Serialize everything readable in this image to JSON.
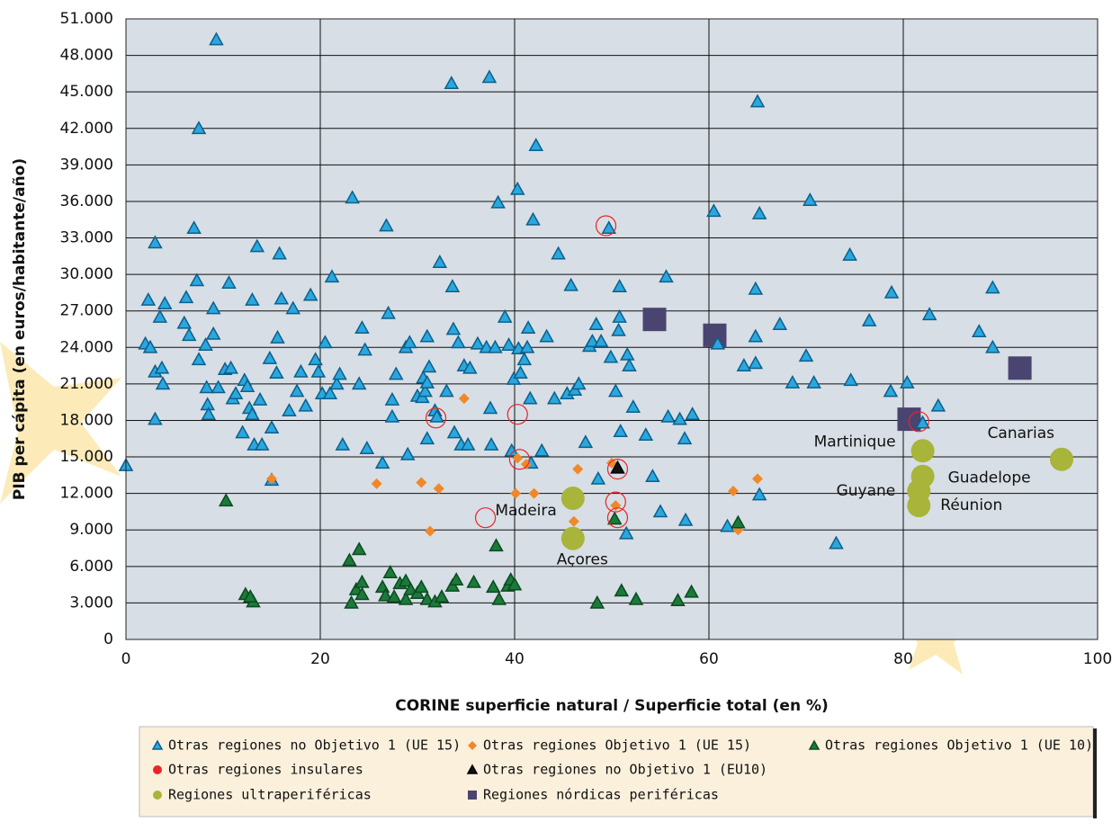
{
  "chart_data": {
    "type": "scatter",
    "xlabel": "CORINE superficie natural / Superficie total (en %)",
    "ylabel": "PIB per cápita (en euros/habitante/año)",
    "xlim": [
      0,
      100
    ],
    "xticks": [
      0,
      20,
      40,
      60,
      80,
      100
    ],
    "ylim": [
      0,
      51000
    ],
    "yticks": [
      0,
      {
        "value": 3000,
        "label": "3.000"
      },
      {
        "value": 6000,
        "label": "6.000"
      },
      {
        "value": 9000,
        "label": "9.000"
      },
      {
        "value": 12000,
        "label": "12.000"
      },
      {
        "value": 15000,
        "label": "15.000"
      },
      {
        "value": 18000,
        "label": "18.000"
      },
      {
        "value": 21000,
        "label": "21.000"
      },
      {
        "value": 24000,
        "label": "24.000"
      },
      {
        "value": 27000,
        "label": "27.000"
      },
      {
        "value": 30000,
        "label": "30.000"
      },
      {
        "value": 33000,
        "label": "33.000"
      },
      {
        "value": 36000,
        "label": "36.000"
      },
      {
        "value": 39000,
        "label": "39.000"
      },
      {
        "value": 42000,
        "label": "42.000"
      },
      {
        "value": 45000,
        "label": "45.000"
      },
      {
        "value": 48000,
        "label": "48.000"
      },
      {
        "value": 51000,
        "label": "51.000"
      }
    ],
    "grid": true,
    "series": [
      {
        "name": "Otras regiones no Objetivo 1 (UE 15)",
        "color": "#2aa7df",
        "marker": "triangle",
        "x": [
          0,
          2,
          2.3,
          2.5,
          3,
          3,
          3,
          3.5,
          3.7,
          3.8,
          4,
          6,
          6.2,
          6.5,
          7,
          7.3,
          7.5,
          7.5,
          8.2,
          8.3,
          8.4,
          8.5,
          9,
          9,
          9.3,
          9.5,
          10.2,
          10.6,
          10.8,
          11,
          11.3,
          12,
          12.2,
          12.5,
          12.7,
          13,
          13,
          13.2,
          13.5,
          13.8,
          14,
          14.8,
          15,
          15,
          15.5,
          15.6,
          15.8,
          16,
          16.8,
          17.2,
          17.6,
          18,
          18.5,
          19,
          19.5,
          19.8,
          20.2,
          20.5,
          21,
          21.2,
          21.7,
          22,
          22.3,
          23.3,
          24,
          24.3,
          24.8,
          24.6,
          26.4,
          26.8,
          27,
          27.4,
          27.4,
          27.8,
          28.8,
          29,
          29.2,
          30,
          30.5,
          30.6,
          30.8,
          31,
          31,
          31,
          31.2,
          31.8,
          32,
          32.3,
          33,
          33.5,
          33.6,
          33.7,
          33.8,
          34.2,
          34.5,
          34.8,
          35.4,
          35.2,
          36.2,
          37.1,
          37.4,
          37.5,
          37.6,
          38,
          38.3,
          39,
          39.4,
          39.7,
          39.9,
          40.3,
          40.4,
          40.6,
          41,
          41.3,
          41.4,
          41.6,
          41.7,
          41.9,
          42.2,
          42.8,
          43.3,
          44.1,
          44.5,
          45.4,
          45.8,
          46.2,
          46.6,
          47.3,
          47.7,
          48,
          48.4,
          48.6,
          48.9,
          49.7,
          49.9,
          50.4,
          50.7,
          50.8,
          50.8,
          50.9,
          51.6,
          51.8,
          51.5,
          52.2,
          53.5,
          54.2,
          55,
          55.6,
          55.8,
          57,
          57.5,
          57.6,
          58.3,
          60.5,
          60.9,
          61.9,
          63.6,
          64.8,
          64.8,
          64.8,
          65,
          65.2,
          65.2,
          67.3,
          68.6,
          70,
          70.4,
          70.8,
          73.1,
          74.5,
          74.6,
          76.5,
          78.8,
          78.7,
          80.4,
          82,
          82.7,
          83.6,
          87.8,
          89.2,
          89.2
        ],
        "values": [
          14300,
          24300,
          27900,
          24000,
          32600,
          22000,
          18100,
          26500,
          22300,
          21000,
          27600,
          26000,
          28100,
          25000,
          33800,
          29500,
          42000,
          23000,
          24200,
          20700,
          19300,
          18500,
          27200,
          25100,
          49300,
          20700,
          22200,
          29300,
          22300,
          19800,
          20200,
          17000,
          21300,
          20800,
          19000,
          18500,
          27900,
          16000,
          32300,
          19700,
          16000,
          23100,
          17400,
          13100,
          21900,
          24800,
          31700,
          28000,
          18800,
          27200,
          20400,
          22000,
          19200,
          28300,
          23000,
          22000,
          20200,
          24400,
          20200,
          29800,
          21000,
          21800,
          16000,
          36300,
          21000,
          25600,
          15700,
          23800,
          14500,
          34000,
          26800,
          19700,
          18300,
          21800,
          24000,
          15200,
          24400,
          20000,
          19900,
          21500,
          20400,
          16500,
          24900,
          21100,
          22400,
          18800,
          18300,
          31000,
          20400,
          45700,
          29000,
          25500,
          17000,
          24400,
          16000,
          22500,
          22300,
          16000,
          24300,
          24000,
          46200,
          19000,
          16000,
          24000,
          35900,
          26500,
          24200,
          15500,
          21400,
          37000,
          23900,
          21900,
          23000,
          24000,
          25600,
          19800,
          14500,
          34500,
          40600,
          15500,
          24900,
          19800,
          31700,
          20200,
          29100,
          20500,
          21000,
          16200,
          24100,
          24500,
          25900,
          13200,
          24500,
          33800,
          23200,
          20400,
          25400,
          26500,
          29000,
          17100,
          23400,
          22500,
          8700,
          19100,
          16800,
          13400,
          10500,
          29800,
          18300,
          18100,
          16500,
          9800,
          18500,
          35200,
          24300,
          9300,
          22500,
          22700,
          24900,
          28800,
          44200,
          35000,
          11900,
          25900,
          21100,
          23300,
          36100,
          21100,
          7900,
          31600,
          21300,
          26200,
          28500,
          20400,
          21100,
          17800,
          26700,
          19200,
          25300,
          24000,
          28900
        ]
      },
      {
        "name": "Otras regiones Objetivo 1 (UE 15)",
        "color": "#f0882a",
        "marker": "diamond",
        "x": [
          15,
          25.8,
          30.4,
          31.3,
          32.2,
          34.8,
          40.1,
          40.3,
          41.2,
          42,
          46.1,
          46.5,
          50,
          50.4,
          62.5,
          63,
          65
        ],
        "values": [
          13200,
          12800,
          12900,
          8900,
          12400,
          19800,
          12000,
          14900,
          14400,
          12000,
          9700,
          14000,
          14500,
          11000,
          12200,
          9000,
          13200
        ]
      },
      {
        "name": "Otras regiones Objetivo 1 (UE 10)",
        "color": "#1a7a3a",
        "marker": "triangle",
        "x": [
          10.3,
          12.3,
          13.1,
          12.8,
          23,
          23.2,
          23.7,
          24,
          24.3,
          24.3,
          26.4,
          26.7,
          27.2,
          27.6,
          28.2,
          28.8,
          28.8,
          29.3,
          30,
          30.4,
          31,
          31.8,
          32.5,
          33.6,
          34,
          35.8,
          37.8,
          38.1,
          38.4,
          39.3,
          39.6,
          40,
          48.5,
          50.3,
          51,
          52.5,
          56.8,
          58.2,
          63
        ],
        "values": [
          11400,
          3700,
          3100,
          3500,
          6500,
          3000,
          4100,
          7400,
          4700,
          3700,
          4300,
          3600,
          5500,
          3500,
          4600,
          4800,
          3300,
          4100,
          3800,
          4300,
          3300,
          3100,
          3500,
          4400,
          4900,
          4700,
          4300,
          7700,
          3300,
          4400,
          4900,
          4500,
          3000,
          9900,
          4000,
          3300,
          3200,
          3900,
          9600
        ]
      },
      {
        "name": "Otras regiones insulares",
        "color": "#e8262a",
        "marker": "circle-open",
        "x": [
          31.9,
          40.3,
          37,
          49.4,
          50.6,
          40.5,
          50.4,
          50.6,
          81.6
        ],
        "values": [
          18200,
          18500,
          10000,
          34000,
          14000,
          14800,
          11300,
          10000,
          17900
        ]
      },
      {
        "name": "Otras regiones no Objetivo 1 (EU10)",
        "color": "#111111",
        "marker": "triangle",
        "x": [
          50.6
        ],
        "values": [
          14100
        ]
      },
      {
        "name": "Regiones ultraperiféricas",
        "color": "#a8b43a",
        "marker": "circle",
        "x": [
          82,
          96.3,
          82,
          81.6,
          81.6,
          46,
          46
        ],
        "values": [
          15500,
          14800,
          13400,
          12200,
          11000,
          11600,
          8300
        ],
        "labels": [
          "Martinique",
          "Canarias",
          "Guadelope",
          "Guyane",
          "Réunion",
          "Madeira",
          "Açores"
        ]
      },
      {
        "name": "Regiones nórdicas periféricas",
        "color": "#4a4470",
        "marker": "square",
        "x": [
          54.4,
          60.6,
          80.6,
          92
        ],
        "values": [
          26300,
          25000,
          18100,
          22300
        ]
      }
    ]
  }
}
